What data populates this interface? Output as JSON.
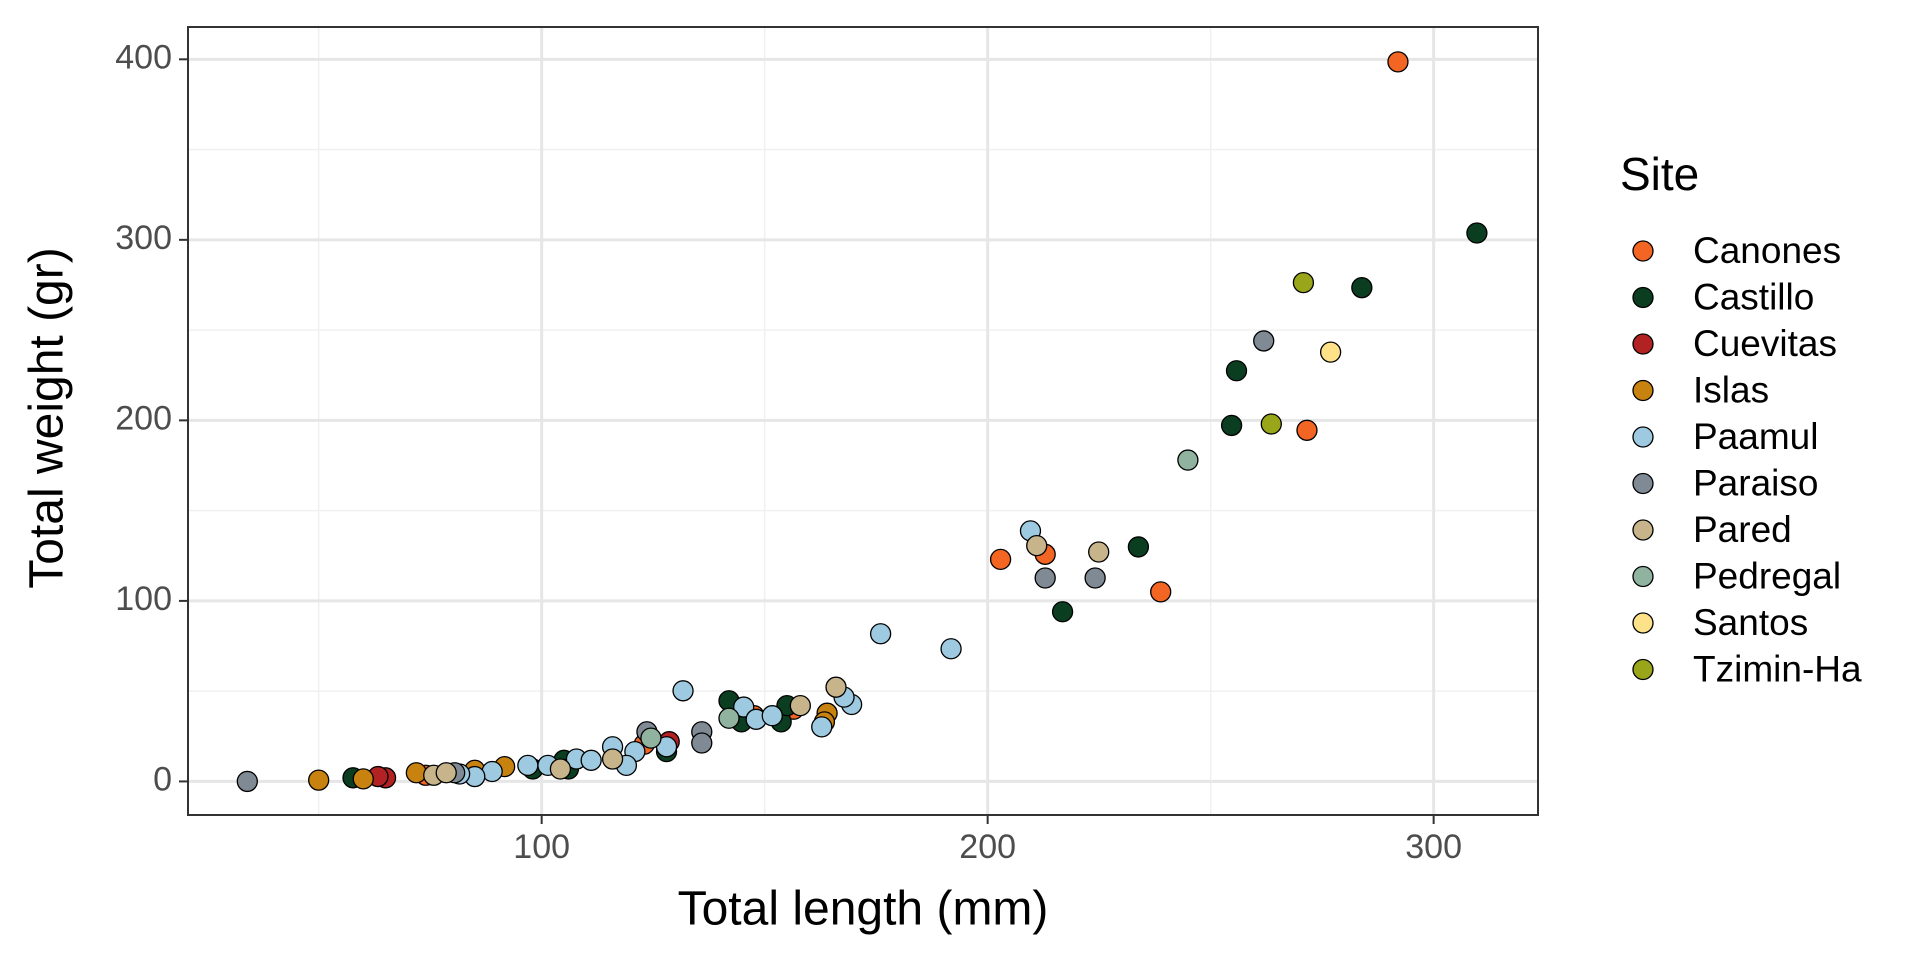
{
  "chart_data": {
    "type": "scatter",
    "x_label": "Total length (mm)",
    "y_label": "Total weight (gr)",
    "legend_title": "Site",
    "legend_position": "right",
    "grid": true,
    "xlim": [
      20.7,
      323.4
    ],
    "ylim": [
      -18.6,
      417.9
    ],
    "xticks": [
      100,
      200,
      300
    ],
    "yticks": [
      0,
      100,
      200,
      300,
      400
    ],
    "series": [
      {
        "name": "Canones",
        "color": "#f26522",
        "x": [
          292,
          271.6,
          238.8,
          202.9,
          212.9,
          123,
          147.6,
          156.5,
          74
        ],
        "values": [
          398.6,
          194.5,
          105,
          123,
          125.8,
          20.6,
          36.4,
          40,
          3.4
        ]
      },
      {
        "name": "Castillo",
        "color": "#0b3d20",
        "x": [
          309.7,
          283.9,
          255.8,
          254.7,
          233.8,
          216.8,
          142,
          144.8,
          153.7,
          155,
          128,
          105,
          106,
          57.7,
          98
        ],
        "values": [
          303.8,
          273.5,
          227.5,
          197.2,
          129.9,
          94,
          44.7,
          33,
          33,
          42,
          16.5,
          11.7,
          6.9,
          2,
          6.9
        ]
      },
      {
        "name": "Cuevitas",
        "color": "#b22222",
        "x": [
          65,
          128.6,
          63.3
        ],
        "values": [
          2,
          22,
          2.7
        ]
      },
      {
        "name": "Islas",
        "color": "#c8820f",
        "x": [
          50,
          60,
          71.9,
          85,
          91.7,
          164,
          163.4
        ],
        "values": [
          0.7,
          1.4,
          4.8,
          6.2,
          8.2,
          37.8,
          33
        ]
      },
      {
        "name": "Paamul",
        "color": "#9ecae1",
        "x": [
          209.6,
          176,
          191.8,
          131.7,
          169.5,
          167.8,
          162.8,
          145.3,
          148.1,
          151.7,
          115.9,
          120.9,
          119,
          107.8,
          111.1,
          101.4,
          96.9,
          88.9,
          85,
          81.6,
          128
        ],
        "values": [
          138.8,
          81.8,
          73.5,
          50.2,
          42.6,
          46.7,
          30.2,
          41.2,
          34.4,
          36.4,
          19.2,
          16.5,
          8.9,
          12.4,
          11.7,
          8.9,
          8.9,
          5.5,
          2.7,
          4.1,
          19.2
        ]
      },
      {
        "name": "Paraiso",
        "color": "#7f8a94",
        "x": [
          34,
          261.9,
          224.1,
          212.9,
          135.9,
          135.9,
          123.6,
          80.5
        ],
        "values": [
          0,
          244,
          112.7,
          112.7,
          27.5,
          21.3,
          27.5,
          4.8
        ]
      },
      {
        "name": "Pared",
        "color": "#c8b48a",
        "x": [
          211,
          224.9,
          166,
          158,
          115.9,
          104.2,
          75.8,
          78.6
        ],
        "values": [
          130.6,
          127.1,
          52.2,
          42,
          12.4,
          6.9,
          3.4,
          4.8
        ]
      },
      {
        "name": "Pedregal",
        "color": "#8fb39e",
        "x": [
          244.9,
          142,
          124.5
        ],
        "values": [
          178,
          35,
          24
        ]
      },
      {
        "name": "Santos",
        "color": "#fde28a",
        "x": [
          276.9
        ],
        "values": [
          237.8
        ]
      },
      {
        "name": "Tzimin-Ha",
        "color": "#9aa61a",
        "x": [
          270.8,
          263.6
        ],
        "values": [
          276.3,
          198
        ]
      }
    ]
  }
}
